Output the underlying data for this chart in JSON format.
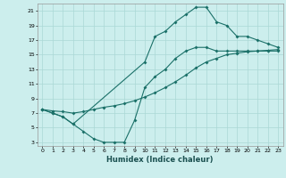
{
  "title": "",
  "xlabel": "Humidex (Indice chaleur)",
  "ylabel": "",
  "bg_color": "#cceeed",
  "grid_color": "#aad8d5",
  "line_color": "#1a7068",
  "line1_x": [
    0,
    1,
    2,
    3,
    10,
    11,
    12,
    13,
    14,
    15,
    16,
    17,
    18,
    19,
    20,
    21,
    22,
    23
  ],
  "line1_y": [
    7.5,
    7.0,
    6.5,
    5.5,
    14.0,
    17.5,
    18.2,
    19.5,
    20.5,
    21.5,
    21.5,
    19.5,
    19.0,
    17.5,
    17.5,
    17.0,
    16.5,
    16.0
  ],
  "line2_x": [
    0,
    1,
    2,
    3,
    4,
    5,
    6,
    7,
    8,
    9,
    10,
    11,
    12,
    13,
    14,
    15,
    16,
    17,
    18,
    19,
    20,
    21,
    22,
    23
  ],
  "line2_y": [
    7.5,
    7.0,
    6.5,
    5.5,
    4.5,
    3.5,
    3.0,
    3.0,
    3.0,
    6.0,
    10.5,
    12.0,
    13.0,
    14.5,
    15.5,
    16.0,
    16.0,
    15.5,
    15.5,
    15.5,
    15.5,
    15.5,
    15.5,
    15.5
  ],
  "line3_x": [
    0,
    1,
    2,
    3,
    4,
    5,
    6,
    7,
    8,
    9,
    10,
    11,
    12,
    13,
    14,
    15,
    16,
    17,
    18,
    19,
    20,
    21,
    22,
    23
  ],
  "line3_y": [
    7.5,
    7.3,
    7.2,
    7.0,
    7.2,
    7.5,
    7.8,
    8.0,
    8.3,
    8.7,
    9.2,
    9.8,
    10.5,
    11.3,
    12.2,
    13.2,
    14.0,
    14.5,
    15.0,
    15.2,
    15.4,
    15.5,
    15.6,
    15.7
  ],
  "xlim": [
    -0.5,
    23.5
  ],
  "ylim": [
    2.5,
    22
  ],
  "yticks": [
    3,
    5,
    7,
    9,
    11,
    13,
    15,
    17,
    19,
    21
  ],
  "xticks": [
    0,
    1,
    2,
    3,
    4,
    5,
    6,
    7,
    8,
    9,
    10,
    11,
    12,
    13,
    14,
    15,
    16,
    17,
    18,
    19,
    20,
    21,
    22,
    23
  ],
  "tick_fontsize": 4.5,
  "xlabel_fontsize": 6,
  "marker_size": 2.0
}
